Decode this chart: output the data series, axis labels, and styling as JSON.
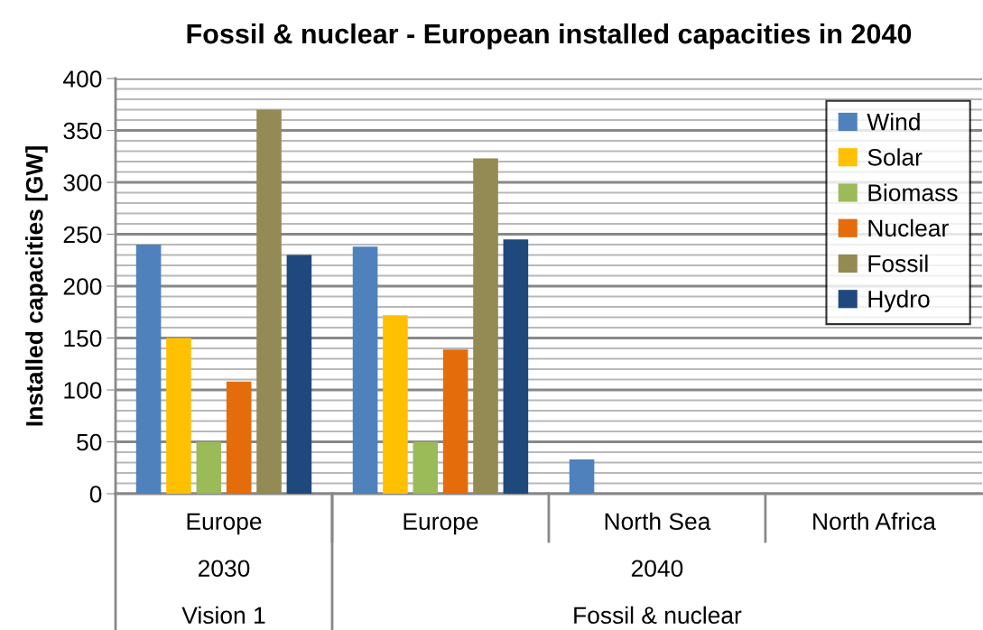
{
  "chart_data": {
    "type": "bar",
    "title": "Fossil & nuclear - European installed capacities in 2040",
    "ylabel": "Installed capacities [GW]",
    "categories": [
      "Europe",
      "Europe",
      "North Sea",
      "North Africa"
    ],
    "series": [
      {
        "name": "Wind",
        "color": "#4f81bd",
        "values": [
          240,
          238,
          33,
          null
        ]
      },
      {
        "name": "Solar",
        "color": "#ffc000",
        "values": [
          150,
          172,
          null,
          null
        ]
      },
      {
        "name": "Biomass",
        "color": "#9bbb59",
        "values": [
          50,
          50,
          null,
          null
        ]
      },
      {
        "name": "Nuclear",
        "color": "#e46c0a",
        "values": [
          108,
          139,
          null,
          null
        ]
      },
      {
        "name": "Fossil",
        "color": "#948a54",
        "values": [
          370,
          323,
          null,
          null
        ]
      },
      {
        "name": "Hydro",
        "color": "#1f497d",
        "values": [
          230,
          245,
          null,
          null
        ]
      }
    ],
    "ylim": [
      0,
      400
    ],
    "yticks": [
      0,
      {
        "value": 10,
        "label": null
      },
      {
        "value": 20,
        "label": null
      },
      {
        "value": 30,
        "label": null
      },
      {
        "value": 40,
        "label": null
      },
      50,
      {
        "value": 60,
        "label": null
      },
      {
        "value": 70,
        "label": null
      },
      {
        "value": 80,
        "label": null
      },
      {
        "value": 90,
        "label": null
      },
      100,
      {
        "value": 110,
        "label": null
      },
      {
        "value": 120,
        "label": null
      },
      {
        "value": 130,
        "label": null
      },
      {
        "value": 140,
        "label": null
      },
      150,
      {
        "value": 160,
        "label": null
      },
      {
        "value": 170,
        "label": null
      },
      {
        "value": 180,
        "label": null
      },
      {
        "value": 190,
        "label": null
      },
      200,
      {
        "value": 210,
        "label": null
      },
      {
        "value": 220,
        "label": null
      },
      {
        "value": 230,
        "label": null
      },
      {
        "value": 240,
        "label": null
      },
      250,
      {
        "value": 260,
        "label": null
      },
      {
        "value": 270,
        "label": null
      },
      {
        "value": 280,
        "label": null
      },
      {
        "value": 290,
        "label": null
      },
      300,
      {
        "value": 310,
        "label": null
      },
      {
        "value": 320,
        "label": null
      },
      {
        "value": 330,
        "label": null
      },
      {
        "value": 340,
        "label": null
      },
      350,
      {
        "value": 360,
        "label": null
      },
      {
        "value": 370,
        "label": null
      },
      {
        "value": 380,
        "label": null
      },
      {
        "value": 390,
        "label": null
      },
      400
    ],
    "annotations": [
      "2030",
      "2040",
      "Vision 1",
      "Fossil & nuclear"
    ],
    "grid": "y",
    "legend": "top right"
  }
}
